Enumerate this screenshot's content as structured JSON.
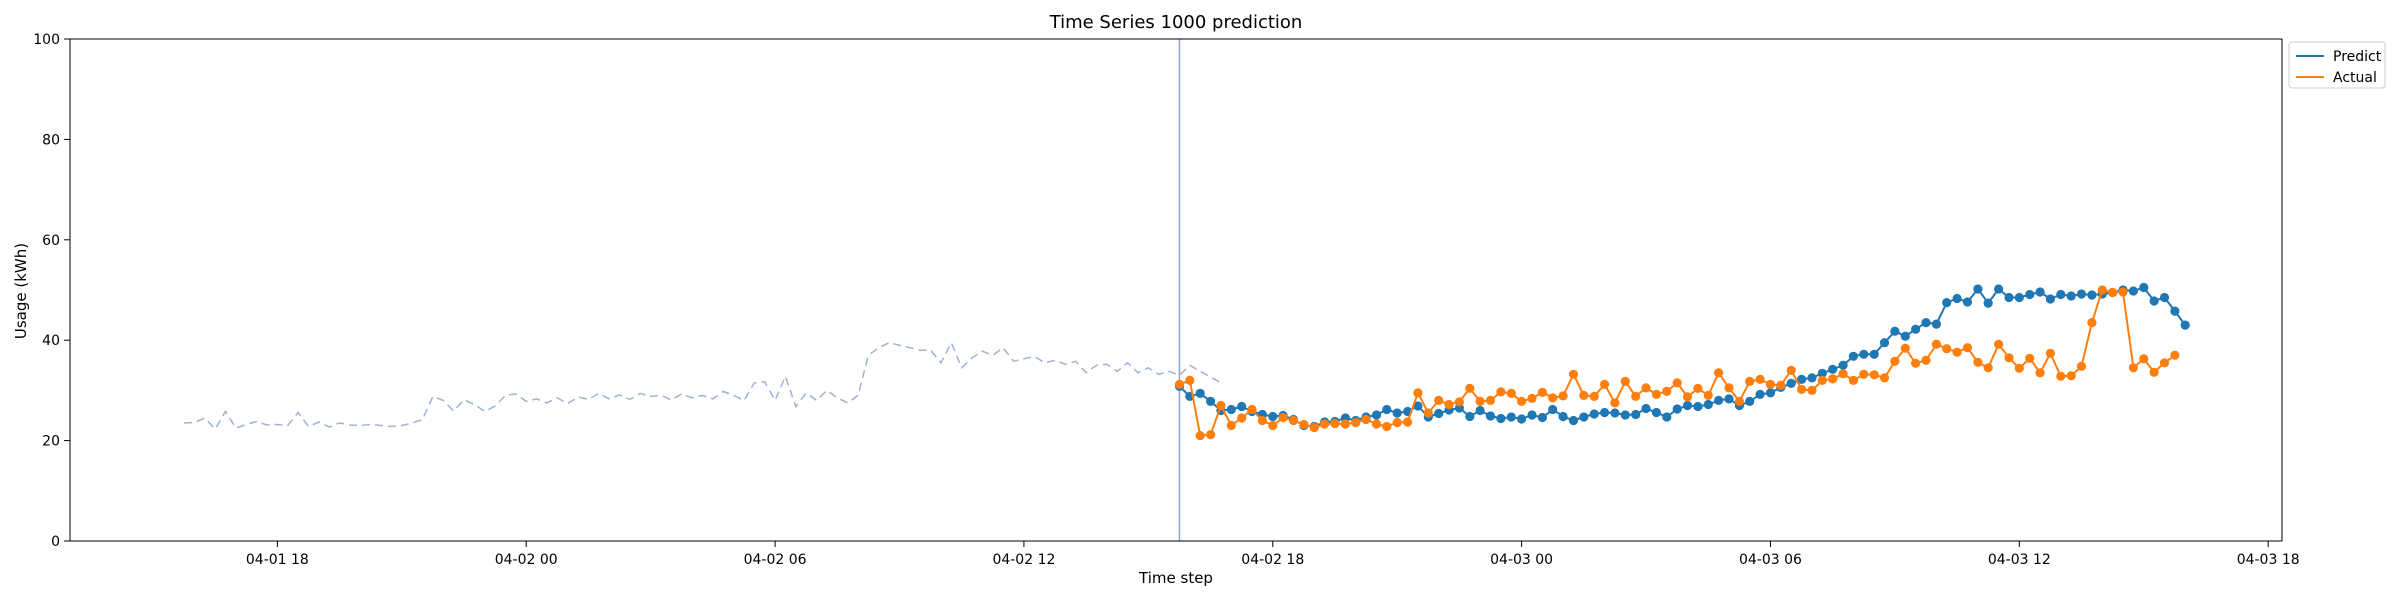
{
  "chart_data": {
    "type": "line",
    "title": "Time Series 1000 prediction",
    "xlabel": "Time step",
    "ylabel": "Usage (kWh)",
    "ylim": [
      0,
      100
    ],
    "xlim": [
      "2024-04-01 13:00",
      "2024-04-03 18:20"
    ],
    "x_ticks": [
      {
        "t": "2024-04-01 18:00",
        "label": "04-01 18"
      },
      {
        "t": "2024-04-02 00:00",
        "label": "04-02 00"
      },
      {
        "t": "2024-04-02 06:00",
        "label": "04-02 06"
      },
      {
        "t": "2024-04-02 12:00",
        "label": "04-02 12"
      },
      {
        "t": "2024-04-02 18:00",
        "label": "04-02 18"
      },
      {
        "t": "2024-04-03 00:00",
        "label": "04-03 00"
      },
      {
        "t": "2024-04-03 06:00",
        "label": "04-03 06"
      },
      {
        "t": "2024-04-03 12:00",
        "label": "04-03 12"
      },
      {
        "t": "2024-04-03 18:00",
        "label": "04-03 18"
      }
    ],
    "y_ticks": [
      0,
      20,
      40,
      60,
      80,
      100
    ],
    "grid": false,
    "legend_position": "top-right, outside plot",
    "divider": {
      "t": "2024-04-02 15:45",
      "color": "#8fa4cc"
    },
    "history": {
      "start": "2024-04-01 15:45",
      "step_minutes": 15,
      "color": "#9fb2d3",
      "style": "dashed",
      "values": [
        23.5,
        23.6,
        24.5,
        22.3,
        25.8,
        22.5,
        23.2,
        23.8,
        23.1,
        23.2,
        23.0,
        25.6,
        22.8,
        23.7,
        22.7,
        23.5,
        23.1,
        23.0,
        23.2,
        23.0,
        22.8,
        23.0,
        23.5,
        24.2,
        28.8,
        28.0,
        25.9,
        28.1,
        27.2,
        25.8,
        26.9,
        29.0,
        29.3,
        27.8,
        28.3,
        27.5,
        28.5,
        27.4,
        28.7,
        28.2,
        29.4,
        28.3,
        29.1,
        28.2,
        29.4,
        28.8,
        29.0,
        28.1,
        29.3,
        28.5,
        29.0,
        28.3,
        29.8,
        29.0,
        28.0,
        31.5,
        31.7,
        28.0,
        32.8,
        26.8,
        29.5,
        28.0,
        30.0,
        28.5,
        27.5,
        29.0,
        37.0,
        38.5,
        39.5,
        39.0,
        38.5,
        38.0,
        38.0,
        35.5,
        39.5,
        34.5,
        36.5,
        37.8,
        37.0,
        38.5,
        35.8,
        36.3,
        36.8,
        35.5,
        36.0,
        35.2,
        35.8,
        33.5,
        35.0,
        35.2,
        33.8,
        35.5,
        33.5,
        34.5,
        33.2,
        33.8,
        33.0,
        35.0,
        33.8,
        32.7,
        31.5
      ]
    },
    "series": [
      {
        "name": "Predict",
        "color": "#1f77b4",
        "start": "2024-04-02 15:45",
        "step_minutes": 15,
        "values": [
          30.8,
          28.8,
          29.4,
          27.8,
          26.0,
          26.2,
          26.8,
          25.8,
          25.2,
          24.8,
          25.0,
          24.2,
          23.0,
          22.8,
          23.7,
          23.8,
          24.5,
          24.0,
          24.7,
          25.1,
          26.2,
          25.5,
          25.8,
          26.9,
          24.7,
          25.4,
          26.1,
          26.5,
          24.8,
          26.0,
          24.9,
          24.4,
          24.7,
          24.3,
          25.1,
          24.6,
          26.2,
          24.8,
          24.0,
          24.7,
          25.3,
          25.6,
          25.5,
          25.1,
          25.2,
          26.4,
          25.6,
          24.7,
          26.3,
          27.0,
          26.8,
          27.2,
          28.0,
          28.3,
          27.0,
          27.8,
          29.2,
          29.5,
          30.6,
          31.4,
          32.2,
          32.5,
          33.4,
          34.2,
          35.0,
          36.8,
          37.2,
          37.2,
          39.5,
          41.8,
          40.8,
          42.2,
          43.5,
          43.2,
          47.5,
          48.3,
          47.6,
          50.2,
          47.4,
          50.2,
          48.5,
          48.5,
          49.1,
          49.6,
          48.2,
          49.1,
          48.8,
          49.2,
          49.0,
          49.2,
          49.5,
          50.0,
          49.8,
          50.5,
          47.8,
          48.5,
          45.8,
          43.0
        ]
      },
      {
        "name": "Actual",
        "color": "#ff7f0e",
        "start": "2024-04-02 15:45",
        "step_minutes": 15,
        "values": [
          31.2,
          32.0,
          21.0,
          21.2,
          27.0,
          23.0,
          24.5,
          26.2,
          24.0,
          23.0,
          24.6,
          24.0,
          23.2,
          22.6,
          23.3,
          23.4,
          23.3,
          23.6,
          24.2,
          23.3,
          22.8,
          23.6,
          23.7,
          29.5,
          25.5,
          28.0,
          27.2,
          27.7,
          30.4,
          27.8,
          28.0,
          29.7,
          29.4,
          27.8,
          28.4,
          29.6,
          28.5,
          28.9,
          33.2,
          29.0,
          28.8,
          31.2,
          27.5,
          31.8,
          28.8,
          30.5,
          29.2,
          29.8,
          31.5,
          28.7,
          30.4,
          29.0,
          33.5,
          30.5,
          27.8,
          31.8,
          32.2,
          31.2,
          31.0,
          34.0,
          30.2,
          30.0,
          32.0,
          32.3,
          33.3,
          32.0,
          33.2,
          33.1,
          32.5,
          35.8,
          38.4,
          35.4,
          36.0,
          39.2,
          38.3,
          37.6,
          38.5,
          35.6,
          34.5,
          39.2,
          36.5,
          34.4,
          36.4,
          33.5,
          37.4,
          32.8,
          32.9,
          34.8,
          43.5,
          50.0,
          49.5,
          49.6,
          34.5,
          36.3,
          33.6,
          35.5,
          37.0
        ]
      }
    ]
  }
}
